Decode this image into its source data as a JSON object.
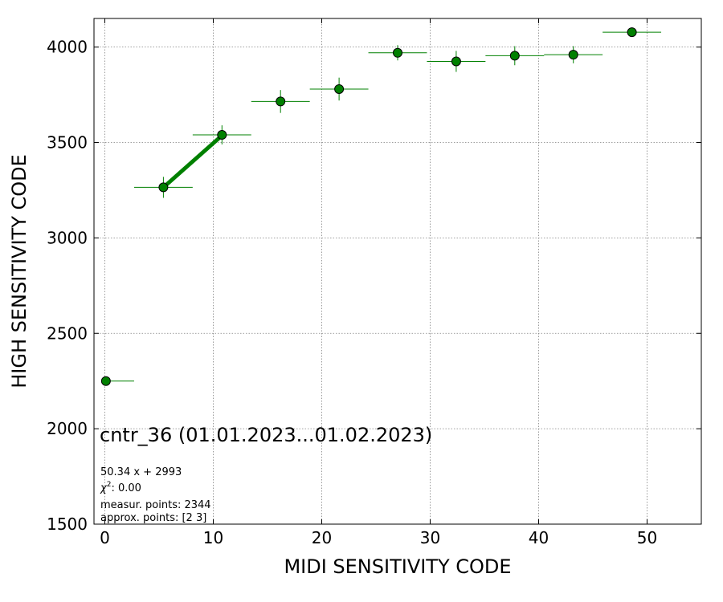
{
  "chart_data": {
    "type": "scatter",
    "xlabel": "MIDI SENSITIVITY CODE",
    "ylabel": "HIGH SENSITIVITY CODE",
    "xlim": [
      -1,
      55
    ],
    "ylim": [
      1500,
      4150
    ],
    "x_ticks": [
      0,
      10,
      20,
      30,
      40,
      50
    ],
    "y_ticks": [
      1500,
      2000,
      2500,
      3000,
      3500,
      4000
    ],
    "grid": true,
    "colors": {
      "points": "#008000",
      "fit_line": "#008000",
      "marker_edge": "#000000"
    },
    "series": [
      {
        "points": [
          {
            "x": 0.1,
            "y": 2250,
            "xerr": [
              0.1,
              2.6
            ],
            "yerr": 0
          },
          {
            "x": 5.4,
            "y": 3265,
            "xerr": [
              2.7,
              2.7
            ],
            "yerr": 55
          },
          {
            "x": 10.8,
            "y": 3540,
            "xerr": [
              2.7,
              2.7
            ],
            "yerr": 50
          },
          {
            "x": 16.2,
            "y": 3715,
            "xerr": [
              2.7,
              2.7
            ],
            "yerr": 60
          },
          {
            "x": 21.6,
            "y": 3780,
            "xerr": [
              2.7,
              2.7
            ],
            "yerr": 60
          },
          {
            "x": 27.0,
            "y": 3970,
            "xerr": [
              2.7,
              2.7
            ],
            "yerr": 40
          },
          {
            "x": 32.4,
            "y": 3925,
            "xerr": [
              2.7,
              2.7
            ],
            "yerr": 55
          },
          {
            "x": 37.8,
            "y": 3955,
            "xerr": [
              2.7,
              2.7
            ],
            "yerr": 50
          },
          {
            "x": 43.2,
            "y": 3960,
            "xerr": [
              2.7,
              2.7
            ],
            "yerr": 45
          },
          {
            "x": 48.6,
            "y": 4078,
            "xerr": [
              2.7,
              2.7
            ],
            "yerr": 0
          }
        ]
      }
    ],
    "fit": {
      "x_from": 5.4,
      "x_to": 10.8,
      "slope": 50.34,
      "intercept": 2993
    },
    "annotations": {
      "title": "cntr_36 (01.01.2023...01.02.2023)",
      "equation": "50.34 x + 2993",
      "chi_label": "χ",
      "chi_sup": "2",
      "chi_value": ": 0.00",
      "measur_points": "measur. points: 2344",
      "approx_points": "approx. points: [2 3]"
    }
  }
}
